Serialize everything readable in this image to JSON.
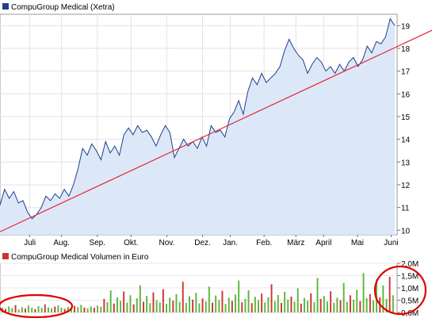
{
  "chart_data": [
    {
      "type": "line",
      "title": "CompuGroup Medical (Xetra)",
      "legend_color": "#1f3f8f",
      "line_color": "#1f3f8f",
      "fill_color": "#dce8f7",
      "trendline_color": "#e2263a",
      "grid": true,
      "ylim": [
        9.8,
        19.5
      ],
      "y_ticks": [
        "10",
        "11",
        "12",
        "13",
        "14",
        "15",
        "16",
        "17",
        "18",
        "19"
      ],
      "y_tick_values": [
        10,
        11,
        12,
        13,
        14,
        15,
        16,
        17,
        18,
        19
      ],
      "x_ticks": [
        "Juli",
        "Aug.",
        "Sep.",
        "Okt.",
        "Nov.",
        "Dez.",
        "Jan.",
        "Feb.",
        "März",
        "April",
        "Mai",
        "Juni"
      ],
      "x_tick_positions": [
        0.075,
        0.155,
        0.245,
        0.33,
        0.42,
        0.51,
        0.58,
        0.665,
        0.745,
        0.815,
        0.9,
        0.985
      ],
      "series": [
        {
          "values": [
            11.1,
            11.8,
            11.4,
            11.7,
            11.2,
            11.3,
            10.8,
            10.5,
            10.7,
            11.0,
            11.5,
            11.3,
            11.6,
            11.4,
            11.8,
            11.5,
            12.0,
            12.7,
            13.6,
            13.3,
            13.8,
            13.5,
            13.1,
            13.9,
            13.4,
            13.7,
            13.3,
            14.2,
            14.5,
            14.2,
            14.6,
            14.3,
            14.4,
            14.1,
            13.7,
            14.2,
            14.6,
            14.3,
            13.2,
            13.6,
            14.0,
            13.7,
            13.9,
            13.6,
            14.1,
            13.7,
            14.6,
            14.3,
            14.4,
            14.1,
            14.9,
            15.2,
            15.7,
            15.1,
            16.1,
            16.7,
            16.4,
            16.9,
            16.5,
            16.7,
            16.9,
            17.2,
            17.9,
            18.4,
            18.0,
            17.7,
            17.5,
            16.9,
            17.3,
            17.6,
            17.4,
            17.0,
            17.2,
            16.9,
            17.3,
            17.0,
            17.4,
            17.6,
            17.2,
            17.5,
            18.1,
            17.8,
            18.3,
            18.2,
            18.5,
            19.3,
            19.0
          ]
        }
      ],
      "trendline": {
        "from": [
          0,
          10.0
        ],
        "to": [
          1,
          17.7
        ]
      }
    },
    {
      "type": "bar",
      "title": "CompuGroup Medical Volumen in Euro",
      "legend_color": "#cc3333",
      "up_color": "#5ab53a",
      "down_color": "#d03030",
      "ylim": [
        0,
        2.0
      ],
      "y_ticks": [
        "2,0M",
        "1,5M",
        "1,0M",
        "0,5M",
        "0,0M"
      ],
      "y_tick_values": [
        2.0,
        1.5,
        1.0,
        0.5,
        0.0
      ],
      "values": [
        0.2,
        0.15,
        0.25,
        0.18,
        0.3,
        0.12,
        0.22,
        0.16,
        0.28,
        0.2,
        0.14,
        0.26,
        0.19,
        0.33,
        0.21,
        0.17,
        0.24,
        0.29,
        0.2,
        0.15,
        0.23,
        0.18,
        0.27,
        0.22,
        0.31,
        0.2,
        0.16,
        0.25,
        0.19,
        0.28,
        0.24,
        0.55,
        0.42,
        0.9,
        0.36,
        0.62,
        0.47,
        0.85,
        0.4,
        0.7,
        0.33,
        0.58,
        1.1,
        0.44,
        0.67,
        0.38,
        0.82,
        0.5,
        0.41,
        0.95,
        0.35,
        0.6,
        0.48,
        0.75,
        0.43,
        1.25,
        0.39,
        0.66,
        0.52,
        0.8,
        0.37,
        0.57,
        0.45,
        1.05,
        0.4,
        0.69,
        0.5,
        0.88,
        0.35,
        0.6,
        0.47,
        0.73,
        1.3,
        0.42,
        0.55,
        0.9,
        0.38,
        0.64,
        0.5,
        0.77,
        0.41,
        0.62,
        1.15,
        0.46,
        0.71,
        0.39,
        0.84,
        0.53,
        0.65,
        0.44,
        0.98,
        0.36,
        0.59,
        0.48,
        0.78,
        0.42,
        1.4,
        0.55,
        0.67,
        0.45,
        0.86,
        0.4,
        0.6,
        0.5,
        1.2,
        0.43,
        0.7,
        0.52,
        0.92,
        0.46,
        1.6,
        0.58,
        0.75,
        0.49,
        1.35,
        0.62,
        1.1,
        0.55,
        1.45,
        0.7
      ]
    }
  ]
}
